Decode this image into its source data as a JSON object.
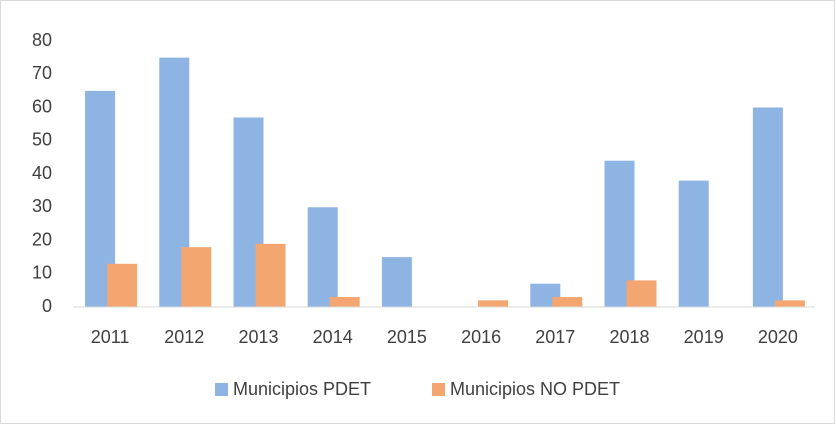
{
  "chart_data": {
    "type": "bar",
    "categories": [
      "2011",
      "2012",
      "2013",
      "2014",
      "2015",
      "2016",
      "2017",
      "2018",
      "2019",
      "2020"
    ],
    "series": [
      {
        "name": "Municipios PDET",
        "color": "#8db4e2",
        "values": [
          65,
          75,
          57,
          30,
          15,
          0,
          7,
          44,
          38,
          60
        ]
      },
      {
        "name": "Municipios NO PDET",
        "color": "#f4a671",
        "values": [
          13,
          18,
          19,
          3,
          0,
          2,
          3,
          8,
          0,
          2
        ]
      }
    ],
    "ylim": [
      0,
      80
    ],
    "yticks": [
      0,
      10,
      20,
      30,
      40,
      50,
      60,
      70,
      80
    ],
    "grid": false,
    "legend": "bottom"
  }
}
